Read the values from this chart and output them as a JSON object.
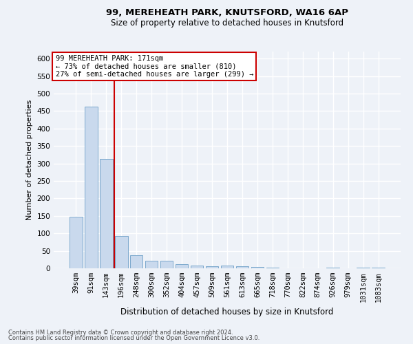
{
  "title": "99, MEREHEATH PARK, KNUTSFORD, WA16 6AP",
  "subtitle": "Size of property relative to detached houses in Knutsford",
  "xlabel": "Distribution of detached houses by size in Knutsford",
  "ylabel": "Number of detached properties",
  "bar_labels": [
    "39sqm",
    "91sqm",
    "143sqm",
    "196sqm",
    "248sqm",
    "300sqm",
    "352sqm",
    "404sqm",
    "457sqm",
    "509sqm",
    "561sqm",
    "613sqm",
    "665sqm",
    "718sqm",
    "770sqm",
    "822sqm",
    "874sqm",
    "926sqm",
    "979sqm",
    "1031sqm",
    "1083sqm"
  ],
  "bar_values": [
    148,
    462,
    312,
    92,
    38,
    21,
    21,
    12,
    7,
    5,
    8,
    5,
    3,
    1,
    0,
    0,
    0,
    2,
    0,
    2,
    2
  ],
  "bar_color": "#c9d9ed",
  "bar_edgecolor": "#7aa8cc",
  "vline_color": "#cc0000",
  "vline_pos": 2.53,
  "annotation_text": "99 MEREHEATH PARK: 171sqm\n← 73% of detached houses are smaller (810)\n27% of semi-detached houses are larger (299) →",
  "annotation_box_color": "#ffffff",
  "annotation_box_edgecolor": "#cc0000",
  "ylim": [
    0,
    620
  ],
  "yticks": [
    0,
    50,
    100,
    150,
    200,
    250,
    300,
    350,
    400,
    450,
    500,
    550,
    600
  ],
  "footer_line1": "Contains HM Land Registry data © Crown copyright and database right 2024.",
  "footer_line2": "Contains public sector information licensed under the Open Government Licence v3.0.",
  "bg_color": "#eef2f8",
  "grid_color": "#ffffff",
  "title_fontsize": 9.5,
  "subtitle_fontsize": 8.5,
  "ylabel_fontsize": 8,
  "xlabel_fontsize": 8.5,
  "tick_fontsize": 7.5,
  "annotation_fontsize": 7.5,
  "footer_fontsize": 6.0
}
